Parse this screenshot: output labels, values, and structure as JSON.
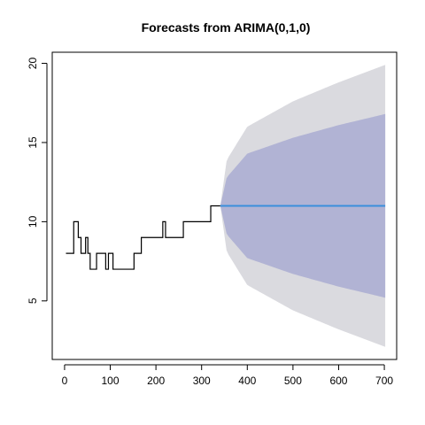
{
  "chart_data": {
    "type": "line",
    "title": "Forecasts from ARIMA(0,1,0)",
    "xlabel": "",
    "ylabel": "",
    "xlim": [
      -27,
      727
    ],
    "ylim": [
      1.3,
      20.7
    ],
    "x_ticks": [
      0,
      100,
      200,
      300,
      400,
      500,
      600,
      700
    ],
    "y_ticks": [
      5,
      10,
      15,
      20
    ],
    "grid": false,
    "legend": "none",
    "series": [
      {
        "type": "step",
        "color": "#000000",
        "points": [
          [
            3,
            8
          ],
          [
            20,
            8
          ],
          [
            20,
            10
          ],
          [
            30,
            10
          ],
          [
            30,
            9
          ],
          [
            36,
            9
          ],
          [
            36,
            8
          ],
          [
            46,
            8
          ],
          [
            46,
            9
          ],
          [
            51,
            9
          ],
          [
            51,
            8
          ],
          [
            56,
            8
          ],
          [
            56,
            7
          ],
          [
            70,
            7
          ],
          [
            70,
            8
          ],
          [
            90,
            8
          ],
          [
            90,
            7
          ],
          [
            96,
            7
          ],
          [
            96,
            8
          ],
          [
            106,
            8
          ],
          [
            106,
            7
          ],
          [
            152,
            7
          ],
          [
            152,
            8
          ],
          [
            168,
            8
          ],
          [
            168,
            9
          ],
          [
            215,
            9
          ],
          [
            215,
            10
          ],
          [
            221,
            10
          ],
          [
            221,
            9
          ],
          [
            260,
            9
          ],
          [
            260,
            10
          ],
          [
            320,
            10
          ],
          [
            320,
            11
          ],
          [
            341,
            11
          ]
        ]
      },
      {
        "name": "",
        "type": "forecast",
        "color": "#3a8fdc",
        "x_start": 341,
        "x_end": 702,
        "point_forecast": 11,
        "band_80": [
          [
            341,
            11,
            11
          ],
          [
            355,
            9.2,
            12.8
          ],
          [
            400,
            7.7,
            14.3
          ],
          [
            500,
            6.7,
            15.3
          ],
          [
            600,
            5.9,
            16.1
          ],
          [
            702,
            5.2,
            16.8
          ]
        ],
        "band_95": [
          [
            341,
            11,
            11
          ],
          [
            355,
            8.1,
            13.9
          ],
          [
            400,
            6.0,
            16.0
          ],
          [
            500,
            4.4,
            17.6
          ],
          [
            600,
            3.2,
            18.8
          ],
          [
            702,
            2.1,
            19.9
          ]
        ],
        "band_80_color": "#b1b3d4",
        "band_95_color": "#dadadf"
      }
    ]
  }
}
